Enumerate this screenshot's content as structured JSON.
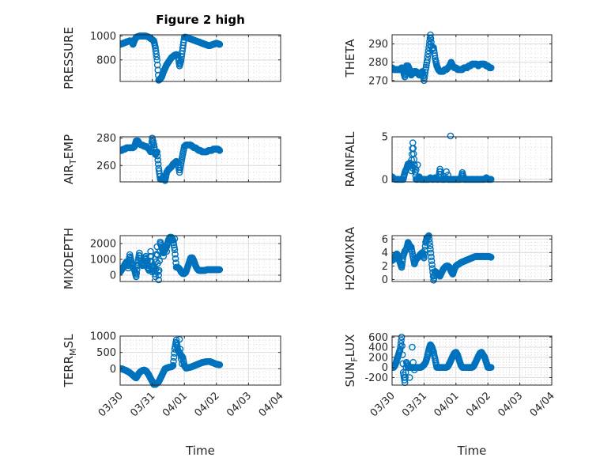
{
  "chart_data": [
    {
      "type": "scatter",
      "title": "Figure 2 high",
      "ylabel": "PRESSURE",
      "ylabel_sub": "",
      "xlabel": "",
      "x_range": [
        "03/30",
        "04/04"
      ],
      "x_tick_labels": [
        "03/30",
        "03/31",
        "04/01",
        "04/02",
        "04/03",
        "04/04"
      ],
      "show_x_tick_labels": false,
      "ylim": [
        620,
        1010
      ],
      "yticks": [
        800,
        1000
      ],
      "grid": true,
      "minor_grid": true,
      "marker": "circle-open",
      "color": "#0072BD",
      "x_days": [
        0,
        0.05,
        0.1,
        0.15,
        0.2,
        0.25,
        0.3,
        0.35,
        0.4,
        0.45,
        0.5,
        0.55,
        0.6,
        0.65,
        0.7,
        0.75,
        0.8,
        0.85,
        0.9,
        0.95,
        1.0,
        1.05,
        1.1,
        1.15,
        1.2,
        1.25,
        1.3,
        1.35,
        1.4,
        1.45,
        1.5,
        1.55,
        1.6,
        1.65,
        1.7,
        1.75,
        1.8,
        1.85,
        1.9,
        1.95,
        2.0,
        2.05,
        2.1,
        2.15,
        2.2,
        2.25,
        2.3,
        2.35,
        2.4,
        2.45,
        2.5,
        2.55,
        2.6,
        2.65,
        2.7,
        2.75,
        2.8,
        2.85,
        2.9,
        2.95,
        3.0,
        3.05,
        3.1
      ],
      "y": [
        930,
        935,
        940,
        945,
        950,
        955,
        960,
        958,
        930,
        965,
        990,
        995,
        1000,
        1000,
        1000,
        1000,
        1000,
        995,
        990,
        980,
        970,
        960,
        900,
        800,
        630,
        640,
        660,
        700,
        730,
        760,
        780,
        800,
        820,
        830,
        840,
        845,
        840,
        750,
        800,
        900,
        990,
        990,
        985,
        980,
        975,
        970,
        965,
        960,
        955,
        950,
        945,
        940,
        935,
        930,
        925,
        920,
        920,
        925,
        930,
        935,
        940,
        935,
        930
      ]
    },
    {
      "type": "scatter",
      "title": "",
      "ylabel": "THETA",
      "ylabel_sub": "",
      "xlabel": "",
      "x_range": [
        "03/30",
        "04/04"
      ],
      "x_tick_labels": [
        "03/30",
        "03/31",
        "04/01",
        "04/02",
        "04/03",
        "04/04"
      ],
      "show_x_tick_labels": false,
      "ylim": [
        269.5,
        295
      ],
      "yticks": [
        270,
        280,
        290
      ],
      "grid": true,
      "minor_grid": true,
      "marker": "circle-open",
      "color": "#0072BD",
      "x_days": [
        0,
        0.05,
        0.1,
        0.15,
        0.2,
        0.25,
        0.3,
        0.35,
        0.4,
        0.45,
        0.5,
        0.55,
        0.6,
        0.65,
        0.7,
        0.75,
        0.8,
        0.85,
        0.9,
        0.95,
        1.0,
        1.05,
        1.1,
        1.15,
        1.2,
        1.25,
        1.3,
        1.35,
        1.4,
        1.45,
        1.5,
        1.55,
        1.6,
        1.65,
        1.7,
        1.75,
        1.8,
        1.85,
        1.9,
        1.95,
        2.0,
        2.05,
        2.1,
        2.15,
        2.2,
        2.25,
        2.3,
        2.35,
        2.4,
        2.45,
        2.5,
        2.55,
        2.6,
        2.65,
        2.7,
        2.75,
        2.8,
        2.85,
        2.9,
        2.95,
        3.0,
        3.05,
        3.1
      ],
      "y": [
        277,
        276,
        276,
        276,
        276,
        276,
        277,
        275,
        272,
        278,
        278,
        276,
        273,
        274,
        275,
        275,
        274,
        273,
        274,
        275,
        270,
        276,
        281,
        288,
        295,
        287,
        288,
        282,
        278,
        276,
        275,
        275,
        275,
        276,
        276,
        277,
        278,
        280,
        278,
        277,
        277,
        276,
        276,
        276,
        276,
        277,
        277,
        277,
        278,
        278,
        279,
        279,
        279,
        279,
        278,
        279,
        279,
        279,
        279,
        278,
        278,
        277,
        277
      ]
    },
    {
      "type": "scatter",
      "title": "",
      "ylabel": "AIR",
      "ylabel_sub": "T",
      "ylabel_suffix": "EMP",
      "xlabel": "",
      "x_range": [
        "03/30",
        "04/04"
      ],
      "x_tick_labels": [
        "03/30",
        "03/31",
        "04/01",
        "04/02",
        "04/03",
        "04/04"
      ],
      "show_x_tick_labels": false,
      "ylim": [
        248,
        281
      ],
      "yticks": [
        260,
        280
      ],
      "grid": true,
      "minor_grid": true,
      "marker": "circle-open",
      "color": "#0072BD",
      "x_days": [
        0,
        0.05,
        0.1,
        0.15,
        0.2,
        0.25,
        0.3,
        0.35,
        0.4,
        0.45,
        0.5,
        0.55,
        0.6,
        0.65,
        0.7,
        0.75,
        0.8,
        0.85,
        0.9,
        0.95,
        1.0,
        1.05,
        1.1,
        1.15,
        1.2,
        1.25,
        1.3,
        1.35,
        1.4,
        1.45,
        1.5,
        1.55,
        1.6,
        1.65,
        1.7,
        1.75,
        1.8,
        1.85,
        1.9,
        1.95,
        2.0,
        2.05,
        2.1,
        2.15,
        2.2,
        2.25,
        2.3,
        2.35,
        2.4,
        2.45,
        2.5,
        2.55,
        2.6,
        2.65,
        2.7,
        2.75,
        2.8,
        2.85,
        2.9,
        2.95,
        3.0,
        3.05,
        3.1
      ],
      "y": [
        271,
        271,
        272,
        272,
        273,
        273,
        273,
        273,
        273,
        274,
        278,
        278,
        276,
        275,
        275,
        274,
        274,
        273,
        272,
        270,
        280,
        275,
        268,
        270,
        258,
        250,
        250,
        252,
        249,
        255,
        257,
        258,
        259,
        261,
        262,
        263,
        262,
        255,
        262,
        268,
        274,
        275,
        275,
        275,
        275,
        274,
        273,
        273,
        272,
        271,
        271,
        270,
        270,
        270,
        270,
        271,
        271,
        271,
        272,
        272,
        272,
        272,
        271
      ]
    },
    {
      "type": "scatter",
      "title": "",
      "ylabel": "RAINFALL",
      "ylabel_sub": "",
      "xlabel": "",
      "x_range": [
        "03/30",
        "04/04"
      ],
      "x_tick_labels": [
        "03/30",
        "03/31",
        "04/01",
        "04/02",
        "04/03",
        "04/04"
      ],
      "show_x_tick_labels": false,
      "ylim": [
        -0.3,
        5
      ],
      "yticks": [
        0,
        5
      ],
      "grid": true,
      "minor_grid": true,
      "marker": "circle-open",
      "color": "#0072BD",
      "x_days": [
        0,
        0.05,
        0.1,
        0.15,
        0.2,
        0.25,
        0.3,
        0.35,
        0.4,
        0.45,
        0.5,
        0.55,
        0.6,
        0.65,
        0.7,
        0.75,
        0.8,
        0.85,
        0.9,
        0.95,
        1.0,
        1.05,
        1.1,
        1.15,
        1.2,
        1.25,
        1.3,
        1.35,
        1.4,
        1.45,
        1.5,
        1.55,
        1.6,
        1.65,
        1.7,
        1.75,
        1.8,
        1.85,
        1.9,
        1.95,
        2.0,
        2.05,
        2.1,
        2.15,
        2.2,
        2.25,
        2.3,
        2.35,
        2.4,
        2.45,
        2.5,
        2.55,
        2.6,
        2.65,
        2.7,
        2.75,
        2.8,
        2.85,
        2.9,
        2.95,
        3.0,
        3.05,
        3.1,
        0.6,
        0.65,
        0.7,
        0.75,
        0.8,
        0.85,
        1.7,
        1.75,
        1.78,
        1.83,
        1.9
      ],
      "y": [
        0.3,
        0.1,
        0,
        0,
        0,
        0,
        0,
        0,
        0.8,
        1.2,
        1.8,
        1.9,
        1.6,
        4.3,
        1.7,
        0,
        0,
        0.2,
        0,
        0,
        0,
        0,
        0,
        0,
        0.2,
        0,
        0,
        0.2,
        0,
        0,
        1.2,
        0,
        0,
        0,
        0.1,
        0,
        0,
        0,
        0,
        0,
        0,
        0,
        0,
        0,
        0.8,
        0,
        0,
        0,
        0,
        0,
        0,
        0,
        0,
        0,
        0,
        0,
        0,
        0,
        0,
        0.2,
        0,
        0,
        0,
        1.0,
        1.3,
        1.6,
        1.1,
        1.7,
        0.3,
        0.9,
        0.5,
        0,
        5.1,
        0
      ]
    },
    {
      "type": "scatter",
      "title": "",
      "ylabel": "MIXDEPTH",
      "ylabel_sub": "",
      "xlabel": "",
      "x_range": [
        "03/30",
        "04/04"
      ],
      "x_tick_labels": [
        "03/30",
        "03/31",
        "04/01",
        "04/02",
        "04/03",
        "04/04"
      ],
      "show_x_tick_labels": false,
      "ylim": [
        -400,
        2500
      ],
      "yticks": [
        0,
        1000,
        2000
      ],
      "grid": true,
      "minor_grid": true,
      "marker": "circle-open",
      "color": "#0072BD",
      "x_days": [
        0,
        0.05,
        0.1,
        0.15,
        0.2,
        0.25,
        0.3,
        0.35,
        0.4,
        0.45,
        0.5,
        0.55,
        0.6,
        0.65,
        0.7,
        0.75,
        0.8,
        0.85,
        0.9,
        0.95,
        1.0,
        1.05,
        1.1,
        1.15,
        1.2,
        1.25,
        1.3,
        1.35,
        1.4,
        1.45,
        1.5,
        1.55,
        1.6,
        1.65,
        1.7,
        1.75,
        1.8,
        1.85,
        1.9,
        1.95,
        2.0,
        2.05,
        2.1,
        2.15,
        2.2,
        2.25,
        2.3,
        2.35,
        2.4,
        2.45,
        2.5,
        2.55,
        2.6,
        2.65,
        2.7,
        2.75,
        2.8,
        2.85,
        2.9,
        2.95,
        3.0,
        3.05,
        3.1,
        0.25,
        0.55,
        0.85,
        1.2,
        1.25,
        1.35,
        1.45,
        1.7
      ],
      "y": [
        200,
        350,
        500,
        700,
        850,
        600,
        1300,
        800,
        500,
        300,
        -100,
        800,
        1400,
        700,
        600,
        800,
        1200,
        500,
        300,
        1500,
        200,
        600,
        -100,
        1800,
        -300,
        2100,
        1700,
        1400,
        1600,
        1800,
        2200,
        2400,
        2400,
        2200,
        1600,
        500,
        500,
        400,
        200,
        100,
        100,
        200,
        500,
        800,
        1100,
        1100,
        900,
        600,
        400,
        300,
        300,
        300,
        300,
        300,
        350,
        350,
        350,
        350,
        350,
        350,
        350,
        350,
        350,
        450,
        650,
        900,
        0,
        2000,
        1200,
        1500,
        2300
      ]
    },
    {
      "type": "scatter",
      "title": "",
      "ylabel": "H2OMIXRA",
      "ylabel_sub": "",
      "xlabel": "",
      "x_range": [
        "03/30",
        "04/04"
      ],
      "x_tick_labels": [
        "03/30",
        "03/31",
        "04/01",
        "04/02",
        "04/03",
        "04/04"
      ],
      "show_x_tick_labels": false,
      "ylim": [
        -0.3,
        6.5
      ],
      "yticks": [
        0,
        2,
        4,
        6
      ],
      "grid": true,
      "minor_grid": true,
      "marker": "circle-open",
      "color": "#0072BD",
      "x_days": [
        0,
        0.05,
        0.1,
        0.15,
        0.2,
        0.25,
        0.3,
        0.35,
        0.4,
        0.45,
        0.5,
        0.55,
        0.6,
        0.65,
        0.7,
        0.75,
        0.8,
        0.85,
        0.9,
        0.95,
        1.0,
        1.05,
        1.1,
        1.15,
        1.2,
        1.25,
        1.3,
        1.35,
        1.4,
        1.45,
        1.5,
        1.55,
        1.6,
        1.65,
        1.7,
        1.75,
        1.8,
        1.85,
        1.9,
        1.95,
        2.0,
        2.05,
        2.1,
        2.15,
        2.2,
        2.25,
        2.3,
        2.35,
        2.4,
        2.45,
        2.5,
        2.55,
        2.6,
        2.65,
        2.7,
        2.75,
        2.8,
        2.85,
        2.9,
        2.95,
        3.0,
        3.05,
        3.1
      ],
      "y": [
        2.8,
        3.0,
        3.5,
        3.8,
        3.2,
        2.5,
        1.8,
        3.5,
        4.2,
        4.5,
        5.5,
        5.0,
        4.8,
        3.5,
        2.3,
        3.0,
        3.2,
        3.5,
        3.8,
        4.0,
        3.2,
        5.5,
        6.2,
        6.5,
        4.5,
        2.2,
        -0.1,
        1.2,
        1.0,
        0.8,
        0.5,
        1.0,
        1.5,
        1.8,
        2.0,
        2.0,
        1.8,
        1.2,
        0.8,
        1.5,
        2.0,
        2.2,
        2.3,
        2.5,
        2.6,
        2.7,
        2.8,
        2.9,
        3.0,
        3.1,
        3.2,
        3.3,
        3.4,
        3.4,
        3.4,
        3.4,
        3.4,
        3.4,
        3.4,
        3.4,
        3.4,
        3.4,
        3.3
      ]
    },
    {
      "type": "scatter",
      "title": "",
      "ylabel": "TERR",
      "ylabel_sub": "M",
      "ylabel_suffix": "SL",
      "xlabel": "Time",
      "x_range": [
        "03/30",
        "04/04"
      ],
      "x_tick_labels": [
        "03/30",
        "03/31",
        "04/01",
        "04/02",
        "04/03",
        "04/04"
      ],
      "show_x_tick_labels": true,
      "ylim": [
        -500,
        1000
      ],
      "yticks": [
        0,
        500,
        1000
      ],
      "grid": true,
      "minor_grid": true,
      "marker": "circle-open",
      "color": "#0072BD",
      "x_days": [
        0,
        0.05,
        0.1,
        0.15,
        0.2,
        0.25,
        0.3,
        0.35,
        0.4,
        0.45,
        0.5,
        0.55,
        0.6,
        0.65,
        0.7,
        0.75,
        0.8,
        0.85,
        0.9,
        0.95,
        1.0,
        1.05,
        1.1,
        1.15,
        1.2,
        1.25,
        1.3,
        1.35,
        1.4,
        1.45,
        1.5,
        1.55,
        1.6,
        1.65,
        1.7,
        1.75,
        1.8,
        1.85,
        1.9,
        1.95,
        2.0,
        2.05,
        2.1,
        2.15,
        2.2,
        2.25,
        2.3,
        2.35,
        2.4,
        2.45,
        2.5,
        2.55,
        2.6,
        2.65,
        2.7,
        2.75,
        2.8,
        2.85,
        2.9,
        2.95,
        3.0,
        3.05,
        3.1,
        1.85,
        1.87,
        1.9,
        1.93
      ],
      "y": [
        0,
        0,
        -20,
        -40,
        -60,
        -90,
        -120,
        -160,
        -200,
        -250,
        -280,
        -200,
        -120,
        -80,
        -50,
        -40,
        -60,
        -120,
        -200,
        -300,
        -380,
        -480,
        -480,
        -440,
        -400,
        -300,
        -200,
        -100,
        0,
        20,
        40,
        50,
        60,
        100,
        600,
        880,
        550,
        500,
        400,
        350,
        100,
        20,
        30,
        40,
        50,
        70,
        90,
        110,
        130,
        150,
        170,
        190,
        200,
        210,
        220,
        220,
        220,
        200,
        180,
        160,
        140,
        130,
        120,
        900,
        600,
        300,
        150
      ]
    },
    {
      "type": "scatter",
      "title": "",
      "ylabel": "SUN",
      "ylabel_sub": "F",
      "ylabel_suffix": "LUX",
      "xlabel": "Time",
      "x_range": [
        "03/30",
        "04/04"
      ],
      "x_tick_labels": [
        "03/30",
        "03/31",
        "04/01",
        "04/02",
        "04/03",
        "04/04"
      ],
      "show_x_tick_labels": true,
      "ylim": [
        -350,
        620
      ],
      "yticks": [
        -200,
        0,
        200,
        400,
        600
      ],
      "grid": true,
      "minor_grid": true,
      "marker": "circle-open",
      "color": "#0072BD",
      "x_days": [
        0,
        0.05,
        0.1,
        0.15,
        0.2,
        0.25,
        0.3,
        0.35,
        0.4,
        0.45,
        0.5,
        0.55,
        0.6,
        0.65,
        0.7,
        0.75,
        0.8,
        0.85,
        0.9,
        0.95,
        1.0,
        1.05,
        1.1,
        1.15,
        1.2,
        1.25,
        1.3,
        1.35,
        1.4,
        1.45,
        1.5,
        1.55,
        1.6,
        1.65,
        1.7,
        1.75,
        1.8,
        1.85,
        1.9,
        1.95,
        2.0,
        2.05,
        2.1,
        2.15,
        2.2,
        2.25,
        2.3,
        2.35,
        2.4,
        2.45,
        2.5,
        2.55,
        2.6,
        2.65,
        2.7,
        2.75,
        2.8,
        2.85,
        2.9,
        2.95,
        3.0,
        3.05,
        3.1,
        0.55,
        0.6,
        0.63,
        0.66,
        0.7
      ],
      "y": [
        0,
        0,
        50,
        150,
        250,
        350,
        600,
        -100,
        -300,
        100,
        0,
        0,
        0,
        0,
        0,
        0,
        0,
        0,
        0,
        20,
        50,
        100,
        200,
        350,
        450,
        400,
        300,
        150,
        0,
        0,
        0,
        0,
        0,
        0,
        0,
        20,
        80,
        150,
        220,
        280,
        300,
        250,
        150,
        50,
        0,
        0,
        0,
        0,
        0,
        0,
        0,
        20,
        80,
        150,
        220,
        280,
        300,
        250,
        200,
        100,
        0,
        0,
        0,
        -200,
        0,
        400,
        100,
        -50
      ]
    }
  ]
}
